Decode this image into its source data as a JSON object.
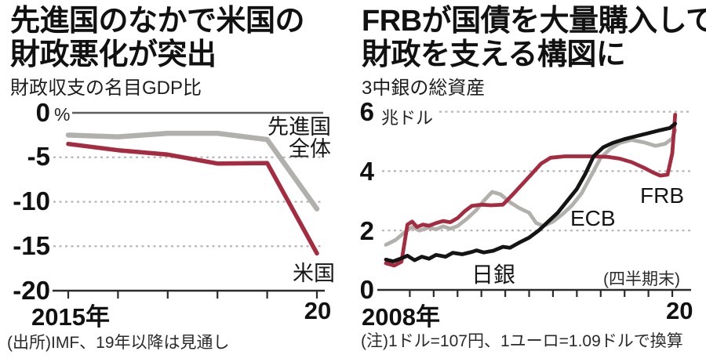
{
  "page_type": "newspaper-infographic",
  "chart_data": [
    {
      "type": "line",
      "title": "先進国のなかで米国の財政悪化が突出",
      "title_lines": [
        "先進国のなかで米国の",
        "財政悪化が突出"
      ],
      "subtitle": "財政収支の名目GDP比",
      "unit": "%",
      "x": [
        2015,
        2016,
        2017,
        2018,
        2019,
        2020
      ],
      "x_axis_label_first": "2015年",
      "x_axis_label_last": "20",
      "ylim": [
        -20,
        0
      ],
      "y_ticks": [
        {
          "label": "0"
        },
        {
          "label": "-5"
        },
        {
          "label": "-10"
        },
        {
          "label": "-15"
        },
        {
          "label": "-20"
        }
      ],
      "grid": "horizontal-dashed",
      "legend_position": "inline-right",
      "series": [
        {
          "id": "advanced",
          "name": "先進国全体",
          "label_lines": [
            "先進国",
            "全体"
          ],
          "color": "#b1b0ad",
          "values": [
            -2.5,
            -2.7,
            -2.3,
            -2.3,
            -3.0,
            -10.8
          ]
        },
        {
          "id": "us",
          "name": "米国",
          "color": "#a52c40",
          "values": [
            -3.5,
            -4.2,
            -4.7,
            -5.7,
            -5.65,
            -15.8
          ]
        }
      ],
      "source_note": "(出所)IMF、19年以降は見通し"
    },
    {
      "type": "line",
      "title": "FRBが国債を大量購入して財政を支える構図に",
      "title_lines": [
        "FRBが国債を大量購入して",
        "財政を支える構図に"
      ],
      "subtitle": "3中銀の総資産",
      "unit": "兆ドル",
      "xlim": [
        2008,
        2020.3
      ],
      "x_axis_label_first": "2008年",
      "x_axis_label_last": "20",
      "ylim": [
        0,
        6.3
      ],
      "y_ticks": [
        {
          "label": "6"
        },
        {
          "label": "4"
        },
        {
          "label": "2"
        },
        {
          "label": "0"
        }
      ],
      "grid": "horizontal-dashed",
      "frequency_note": "(四半期末)",
      "note": "(注)1ドル=107円、1ユーロ=1.09ドルで換算",
      "series": [
        {
          "id": "ecb",
          "name": "ECB",
          "color": "#b1b0ad",
          "points": [
            [
              2008.0,
              1.52
            ],
            [
              2008.4,
              1.68
            ],
            [
              2008.8,
              1.95
            ],
            [
              2009.1,
              2.12
            ],
            [
              2009.4,
              2.0
            ],
            [
              2009.8,
              2.1
            ],
            [
              2010.1,
              2.04
            ],
            [
              2010.4,
              2.14
            ],
            [
              2010.7,
              2.06
            ],
            [
              2011.0,
              2.15
            ],
            [
              2011.4,
              2.4
            ],
            [
              2011.8,
              2.7
            ],
            [
              2012.1,
              3.0
            ],
            [
              2012.45,
              3.3
            ],
            [
              2012.8,
              3.22
            ],
            [
              2013.2,
              2.95
            ],
            [
              2013.6,
              2.75
            ],
            [
              2014.0,
              2.6
            ],
            [
              2014.3,
              2.25
            ],
            [
              2014.6,
              2.15
            ],
            [
              2015.0,
              2.3
            ],
            [
              2015.4,
              2.55
            ],
            [
              2015.8,
              2.85
            ],
            [
              2016.2,
              3.25
            ],
            [
              2016.6,
              3.85
            ],
            [
              2017.0,
              4.45
            ],
            [
              2017.4,
              4.75
            ],
            [
              2017.8,
              4.95
            ],
            [
              2018.3,
              5.05
            ],
            [
              2018.8,
              4.97
            ],
            [
              2019.3,
              4.85
            ],
            [
              2019.7,
              4.92
            ],
            [
              2020.0,
              5.1
            ],
            [
              2020.12,
              5.38
            ]
          ]
        },
        {
          "id": "frb",
          "name": "FRB",
          "color": "#a52c40",
          "points": [
            [
              2008.0,
              0.9
            ],
            [
              2008.35,
              0.82
            ],
            [
              2008.65,
              0.95
            ],
            [
              2008.9,
              2.2
            ],
            [
              2009.1,
              2.3
            ],
            [
              2009.3,
              2.12
            ],
            [
              2009.55,
              2.2
            ],
            [
              2009.8,
              2.16
            ],
            [
              2010.1,
              2.25
            ],
            [
              2010.4,
              2.32
            ],
            [
              2010.7,
              2.28
            ],
            [
              2011.0,
              2.42
            ],
            [
              2011.3,
              2.65
            ],
            [
              2011.6,
              2.83
            ],
            [
              2012.0,
              2.87
            ],
            [
              2012.4,
              2.85
            ],
            [
              2012.9,
              2.87
            ],
            [
              2013.3,
              3.2
            ],
            [
              2013.7,
              3.55
            ],
            [
              2014.1,
              3.9
            ],
            [
              2014.5,
              4.25
            ],
            [
              2014.9,
              4.45
            ],
            [
              2015.5,
              4.5
            ],
            [
              2016.5,
              4.5
            ],
            [
              2017.3,
              4.48
            ],
            [
              2017.8,
              4.42
            ],
            [
              2018.3,
              4.3
            ],
            [
              2018.8,
              4.12
            ],
            [
              2019.2,
              3.95
            ],
            [
              2019.5,
              3.85
            ],
            [
              2019.8,
              3.88
            ],
            [
              2020.0,
              4.6
            ],
            [
              2020.12,
              5.9
            ]
          ]
        },
        {
          "id": "boj",
          "name": "日銀",
          "color": "#141414",
          "points": [
            [
              2008.0,
              1.02
            ],
            [
              2008.3,
              0.96
            ],
            [
              2008.6,
              1.05
            ],
            [
              2008.9,
              1.15
            ],
            [
              2009.2,
              1.0
            ],
            [
              2009.5,
              1.12
            ],
            [
              2009.8,
              1.05
            ],
            [
              2010.1,
              1.18
            ],
            [
              2010.5,
              1.12
            ],
            [
              2010.8,
              1.25
            ],
            [
              2011.2,
              1.2
            ],
            [
              2011.6,
              1.28
            ],
            [
              2011.8,
              1.33
            ],
            [
              2012.1,
              1.26
            ],
            [
              2012.5,
              1.32
            ],
            [
              2012.9,
              1.45
            ],
            [
              2013.2,
              1.42
            ],
            [
              2013.6,
              1.6
            ],
            [
              2014.0,
              1.76
            ],
            [
              2014.4,
              2.0
            ],
            [
              2014.8,
              2.3
            ],
            [
              2015.2,
              2.6
            ],
            [
              2015.6,
              3.0
            ],
            [
              2016.0,
              3.4
            ],
            [
              2016.35,
              3.9
            ],
            [
              2016.7,
              4.5
            ],
            [
              2017.1,
              4.8
            ],
            [
              2017.5,
              4.95
            ],
            [
              2018.0,
              5.08
            ],
            [
              2018.5,
              5.18
            ],
            [
              2019.0,
              5.28
            ],
            [
              2019.5,
              5.38
            ],
            [
              2019.9,
              5.45
            ],
            [
              2020.12,
              5.6
            ]
          ]
        }
      ]
    }
  ],
  "style": {
    "accent_red": "#a52c40",
    "line_gray": "#b1b0ad",
    "line_black": "#141414",
    "grid_color": "#b5b5b5",
    "axis_color": "#2b2b2b",
    "background": "#ffffff"
  }
}
